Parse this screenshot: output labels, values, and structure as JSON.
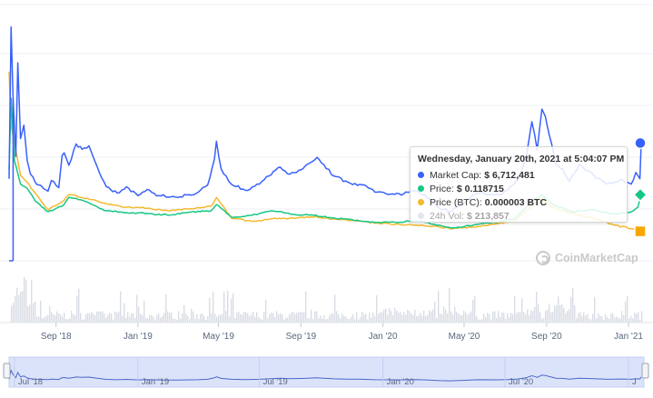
{
  "chart_data": {
    "type": "line",
    "x_start": "2018-06-23",
    "x_end": "2021-01-24",
    "x_tick_labels": [
      "Sep '18",
      "Jan '19",
      "May '19",
      "Sep '19",
      "Jan '20",
      "May '20",
      "Sep '20",
      "Jan '21"
    ],
    "navigator_tick_labels": [
      "Jul '18",
      "Jan '19",
      "Jul '19",
      "Jan '20",
      "Jul '20",
      "J"
    ],
    "gridlines": true,
    "series": [
      {
        "name": "Market Cap",
        "color": "#3861fb",
        "points": [
          [
            "2018-06-23",
            9.0
          ],
          [
            "2018-06-26",
            26.0
          ],
          [
            "2018-06-29",
            18.0
          ],
          [
            "2018-07-03",
            11.5
          ],
          [
            "2018-07-06",
            22.0
          ],
          [
            "2018-07-10",
            13.5
          ],
          [
            "2018-07-15",
            15.0
          ],
          [
            "2018-07-20",
            11.0
          ],
          [
            "2018-07-25",
            9.5
          ],
          [
            "2018-08-01",
            8.6
          ],
          [
            "2018-08-10",
            8.2
          ],
          [
            "2018-08-20",
            7.6
          ],
          [
            "2018-08-25",
            8.8
          ],
          [
            "2018-09-05",
            8.0
          ],
          [
            "2018-09-10",
            11.6
          ],
          [
            "2018-09-13",
            11.9
          ],
          [
            "2018-09-20",
            10.5
          ],
          [
            "2018-10-01",
            12.9
          ],
          [
            "2018-10-10",
            12.3
          ],
          [
            "2018-10-20",
            12.7
          ],
          [
            "2018-11-01",
            10.4
          ],
          [
            "2018-11-15",
            8.1
          ],
          [
            "2018-12-01",
            7.4
          ],
          [
            "2018-12-15",
            8.1
          ],
          [
            "2019-01-01",
            7.1
          ],
          [
            "2019-01-15",
            7.8
          ],
          [
            "2019-02-01",
            7.1
          ],
          [
            "2019-03-01",
            6.9
          ],
          [
            "2019-04-01",
            7.5
          ],
          [
            "2019-04-15",
            8.3
          ],
          [
            "2019-04-25",
            11.2
          ],
          [
            "2019-04-28",
            13.2
          ],
          [
            "2019-05-05",
            10.1
          ],
          [
            "2019-05-20",
            8.4
          ],
          [
            "2019-06-10",
            7.7
          ],
          [
            "2019-07-01",
            8.4
          ],
          [
            "2019-07-15",
            9.3
          ],
          [
            "2019-08-01",
            10.3
          ],
          [
            "2019-08-15",
            9.5
          ],
          [
            "2019-09-01",
            10.0
          ],
          [
            "2019-09-10",
            10.6
          ],
          [
            "2019-09-25",
            11.4
          ],
          [
            "2019-10-05",
            10.6
          ],
          [
            "2019-10-20",
            9.3
          ],
          [
            "2019-11-10",
            8.6
          ],
          [
            "2019-12-01",
            8.3
          ],
          [
            "2019-12-20",
            7.5
          ],
          [
            "2020-01-15",
            7.3
          ],
          [
            "2020-02-01",
            7.3
          ],
          [
            "2020-02-20",
            7.6
          ],
          [
            "2020-03-10",
            6.8
          ],
          [
            "2020-03-25",
            5.7
          ],
          [
            "2020-04-10",
            5.3
          ],
          [
            "2020-04-30",
            6.2
          ],
          [
            "2020-05-20",
            7.4
          ],
          [
            "2020-06-20",
            7.2
          ],
          [
            "2020-07-05",
            7.7
          ],
          [
            "2020-07-20",
            8.9
          ],
          [
            "2020-08-01",
            11.3
          ],
          [
            "2020-08-10",
            15.4
          ],
          [
            "2020-08-14",
            14.0
          ],
          [
            "2020-08-18",
            12.2
          ],
          [
            "2020-08-25",
            16.8
          ],
          [
            "2020-08-30",
            16.0
          ],
          [
            "2020-09-05",
            13.9
          ],
          [
            "2020-09-15",
            10.6
          ],
          [
            "2020-09-25",
            10.1
          ],
          [
            "2020-10-05",
            8.7
          ],
          [
            "2020-10-20",
            10.6
          ],
          [
            "2020-11-10",
            9.4
          ],
          [
            "2020-12-01",
            8.4
          ],
          [
            "2020-12-20",
            8.9
          ],
          [
            "2021-01-05",
            8.4
          ],
          [
            "2021-01-12",
            9.7
          ],
          [
            "2021-01-18",
            9.0
          ],
          [
            "2021-01-20",
            13.0
          ]
        ]
      },
      {
        "name": "Price",
        "color": "#16c784",
        "points": [
          [
            "2018-06-23",
            10.0
          ],
          [
            "2018-06-26",
            18.0
          ],
          [
            "2018-07-01",
            11.0
          ],
          [
            "2018-07-10",
            8.4
          ],
          [
            "2018-07-20",
            7.9
          ],
          [
            "2018-08-01",
            6.5
          ],
          [
            "2018-08-20",
            5.3
          ],
          [
            "2018-09-10",
            5.9
          ],
          [
            "2018-09-20",
            6.9
          ],
          [
            "2018-10-01",
            6.8
          ],
          [
            "2018-10-20",
            6.3
          ],
          [
            "2018-11-15",
            5.4
          ],
          [
            "2018-12-15",
            5.2
          ],
          [
            "2019-01-15",
            5.1
          ],
          [
            "2019-02-15",
            4.9
          ],
          [
            "2019-03-15",
            5.2
          ],
          [
            "2019-04-20",
            5.4
          ],
          [
            "2019-04-28",
            6.1
          ],
          [
            "2019-05-20",
            4.7
          ],
          [
            "2019-06-20",
            4.9
          ],
          [
            "2019-07-20",
            5.4
          ],
          [
            "2019-08-20",
            5.0
          ],
          [
            "2019-09-20",
            4.9
          ],
          [
            "2019-10-20",
            4.6
          ],
          [
            "2019-11-20",
            4.3
          ],
          [
            "2019-12-20",
            4.1
          ],
          [
            "2020-01-20",
            4.1
          ],
          [
            "2020-02-20",
            4.3
          ],
          [
            "2020-03-25",
            3.8
          ],
          [
            "2020-04-15",
            3.5
          ],
          [
            "2020-05-15",
            3.8
          ],
          [
            "2020-06-15",
            4.1
          ],
          [
            "2020-07-15",
            4.5
          ],
          [
            "2020-08-10",
            6.5
          ],
          [
            "2020-08-25",
            7.2
          ],
          [
            "2020-09-10",
            6.1
          ],
          [
            "2020-10-10",
            5.3
          ],
          [
            "2020-11-10",
            5.5
          ],
          [
            "2020-12-10",
            5.0
          ],
          [
            "2021-01-05",
            5.3
          ],
          [
            "2021-01-15",
            5.8
          ],
          [
            "2021-01-20",
            7.2
          ]
        ]
      },
      {
        "name": "Price (BTC)",
        "color": "#f3ba2f",
        "points": [
          [
            "2018-06-23",
            21.0
          ],
          [
            "2018-06-26",
            15.0
          ],
          [
            "2018-07-01",
            13.0
          ],
          [
            "2018-07-10",
            9.4
          ],
          [
            "2018-07-20",
            8.6
          ],
          [
            "2018-08-01",
            7.4
          ],
          [
            "2018-08-20",
            5.5
          ],
          [
            "2018-09-10",
            6.4
          ],
          [
            "2018-09-20",
            7.2
          ],
          [
            "2018-10-01",
            7.1
          ],
          [
            "2018-10-20",
            6.7
          ],
          [
            "2018-11-15",
            6.2
          ],
          [
            "2018-12-15",
            5.8
          ],
          [
            "2019-01-15",
            5.7
          ],
          [
            "2019-02-15",
            5.4
          ],
          [
            "2019-03-15",
            5.6
          ],
          [
            "2019-04-20",
            5.9
          ],
          [
            "2019-04-28",
            6.9
          ],
          [
            "2019-05-20",
            4.6
          ],
          [
            "2019-06-20",
            4.2
          ],
          [
            "2019-07-20",
            4.5
          ],
          [
            "2019-08-20",
            4.6
          ],
          [
            "2019-09-20",
            4.7
          ],
          [
            "2019-10-20",
            4.5
          ],
          [
            "2019-11-20",
            4.3
          ],
          [
            "2019-12-20",
            4.0
          ],
          [
            "2020-01-20",
            3.9
          ],
          [
            "2020-02-20",
            3.8
          ],
          [
            "2020-03-25",
            3.6
          ],
          [
            "2020-04-15",
            3.4
          ],
          [
            "2020-05-15",
            3.6
          ],
          [
            "2020-06-15",
            3.9
          ],
          [
            "2020-07-15",
            4.2
          ],
          [
            "2020-08-10",
            5.9
          ],
          [
            "2020-08-25",
            6.8
          ],
          [
            "2020-09-10",
            5.8
          ],
          [
            "2020-10-10",
            5.1
          ],
          [
            "2020-11-10",
            4.6
          ],
          [
            "2020-12-10",
            3.8
          ],
          [
            "2021-01-05",
            3.4
          ],
          [
            "2021-01-15",
            3.2
          ],
          [
            "2021-01-20",
            3.1
          ]
        ]
      }
    ],
    "tooltip": {
      "title": "Wednesday, January 20th, 2021 at 5:04:07 PM",
      "rows": [
        {
          "label": "Market Cap:",
          "value": "$ 6,712,481",
          "color": "#3861fb"
        },
        {
          "label": "Price:",
          "value": "$ 0.118715",
          "color": "#16c784"
        },
        {
          "label": "Price (BTC):",
          "value": "0.000003 BTC",
          "color": "#f3ba2f"
        },
        {
          "label": "24h Vol:",
          "value": "$ 213,857",
          "color": "#bcc6dc"
        }
      ]
    },
    "watermark": "CoinMarketCap"
  }
}
